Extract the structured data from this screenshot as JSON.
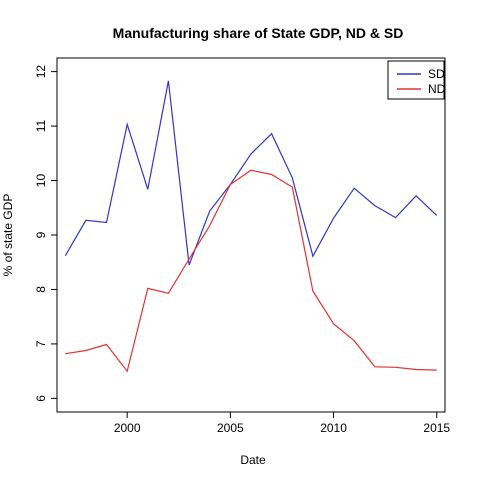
{
  "chart_data": {
    "type": "line",
    "title": "Manufacturing share of State GDP, ND & SD",
    "xlabel": "Date",
    "ylabel": "% of state GDP",
    "xlim": [
      1996.6,
      2015.4
    ],
    "ylim": [
      5.75,
      12.25
    ],
    "x_ticks": [
      2000,
      2005,
      2010,
      2015
    ],
    "y_ticks": [
      6,
      7,
      8,
      9,
      10,
      11,
      12
    ],
    "grid": false,
    "legend_position": "top-right",
    "x": [
      1997,
      1998,
      1999,
      2000,
      2001,
      2002,
      2003,
      2004,
      2005,
      2006,
      2007,
      2008,
      2009,
      2010,
      2011,
      2012,
      2013,
      2014,
      2015
    ],
    "series": [
      {
        "name": "SD",
        "color": "#3333cc",
        "values": [
          8.62,
          9.27,
          9.23,
          11.03,
          9.84,
          11.83,
          8.45,
          9.44,
          9.93,
          10.49,
          10.86,
          10.05,
          8.61,
          9.31,
          9.86,
          9.54,
          9.32,
          9.72,
          9.36
        ]
      },
      {
        "name": "ND",
        "color": "#e03333",
        "values": [
          6.82,
          6.88,
          6.99,
          6.5,
          8.02,
          7.93,
          8.56,
          9.17,
          9.93,
          10.19,
          10.11,
          9.88,
          7.97,
          7.37,
          7.06,
          6.58,
          6.57,
          6.53,
          6.52
        ]
      }
    ]
  }
}
